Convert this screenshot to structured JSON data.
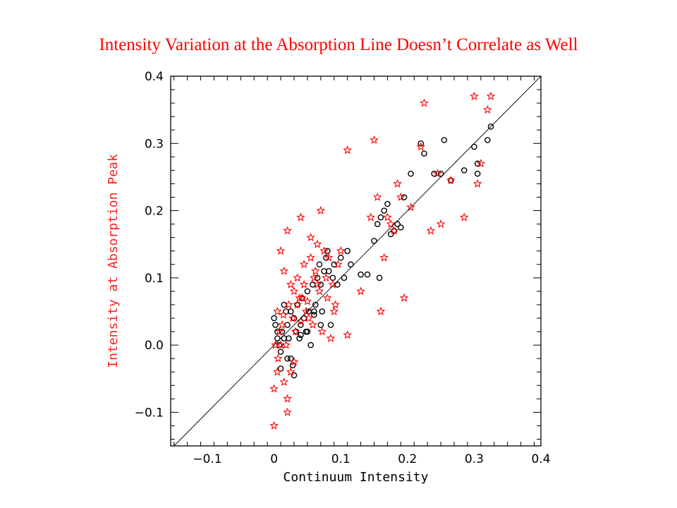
{
  "slide": {
    "title": "Intensity Variation at the Absorption Line Doesn’t Correlate as Well"
  },
  "chart_data": {
    "type": "scatter",
    "xlabel": "Continuum Intensity",
    "ylabel": "Intensity at Absorption Peak",
    "xlim": [
      -0.155,
      0.4
    ],
    "ylim": [
      -0.15,
      0.4
    ],
    "x_ticks": [
      -0.1,
      0.0,
      0.1,
      0.2,
      0.3,
      0.4
    ],
    "x_tick_labels": [
      "−0.1",
      "0",
      "0.1",
      "0.2",
      "0.3",
      "0.4"
    ],
    "y_ticks": [
      -0.1,
      0.0,
      0.1,
      0.2,
      0.3,
      0.4
    ],
    "y_tick_labels": [
      "−0.1",
      "0.0",
      "0.1",
      "0.2",
      "0.3",
      "0.4"
    ],
    "grid": false,
    "reference_line": "y = x",
    "series": [
      {
        "marker": "circle",
        "color": "#000000",
        "points": [
          [
            0.0,
            0.04
          ],
          [
            0.002,
            0.03
          ],
          [
            0.005,
            0.01
          ],
          [
            0.008,
            0.0
          ],
          [
            0.01,
            -0.01
          ],
          [
            0.012,
            0.02
          ],
          [
            0.015,
            0.06
          ],
          [
            0.018,
            0.05
          ],
          [
            0.02,
            0.03
          ],
          [
            0.022,
            0.01
          ],
          [
            0.025,
            -0.02
          ],
          [
            0.028,
            -0.03
          ],
          [
            0.03,
            0.04
          ],
          [
            0.033,
            0.02
          ],
          [
            0.035,
            0.06
          ],
          [
            0.038,
            0.01
          ],
          [
            0.04,
            0.03
          ],
          [
            0.042,
            0.07
          ],
          [
            0.045,
            0.04
          ],
          [
            0.048,
            0.02
          ],
          [
            0.05,
            0.08
          ],
          [
            0.052,
            0.05
          ],
          [
            0.055,
            0.0
          ],
          [
            0.058,
            0.09
          ],
          [
            0.06,
            0.05
          ],
          [
            0.062,
            0.06
          ],
          [
            0.065,
            0.1
          ],
          [
            0.068,
            0.12
          ],
          [
            0.07,
            0.09
          ],
          [
            0.072,
            0.05
          ],
          [
            0.075,
            0.11
          ],
          [
            0.078,
            0.13
          ],
          [
            0.08,
            0.14
          ],
          [
            0.082,
            0.11
          ],
          [
            0.085,
            0.03
          ],
          [
            0.088,
            0.1
          ],
          [
            0.09,
            0.12
          ],
          [
            0.095,
            0.09
          ],
          [
            0.1,
            0.13
          ],
          [
            0.105,
            0.1
          ],
          [
            0.11,
            0.14
          ],
          [
            0.115,
            0.12
          ],
          [
            0.13,
            0.105
          ],
          [
            0.14,
            0.105
          ],
          [
            0.15,
            0.155
          ],
          [
            0.155,
            0.18
          ],
          [
            0.158,
            0.1
          ],
          [
            0.16,
            0.19
          ],
          [
            0.165,
            0.2
          ],
          [
            0.17,
            0.21
          ],
          [
            0.175,
            0.165
          ],
          [
            0.18,
            0.17
          ],
          [
            0.185,
            0.18
          ],
          [
            0.19,
            0.175
          ],
          [
            0.195,
            0.22
          ],
          [
            0.205,
            0.255
          ],
          [
            0.22,
            0.3
          ],
          [
            0.225,
            0.285
          ],
          [
            0.24,
            0.255
          ],
          [
            0.255,
            0.305
          ],
          [
            0.25,
            0.255
          ],
          [
            0.265,
            0.245
          ],
          [
            0.285,
            0.26
          ],
          [
            0.3,
            0.295
          ],
          [
            0.305,
            0.255
          ],
          [
            0.305,
            0.27
          ],
          [
            0.32,
            0.305
          ],
          [
            0.325,
            0.325
          ],
          [
            0.01,
            -0.035
          ],
          [
            0.02,
            -0.02
          ],
          [
            0.03,
            -0.045
          ],
          [
            0.015,
            0.01
          ],
          [
            0.005,
            0.02
          ],
          [
            0.04,
            0.015
          ],
          [
            0.05,
            0.02
          ],
          [
            0.06,
            0.045
          ],
          [
            0.07,
            0.03
          ],
          [
            0.025,
            0.05
          ]
        ]
      },
      {
        "marker": "star",
        "color": "#ff0000",
        "points": [
          [
            0.0,
            -0.12
          ],
          [
            0.0,
            -0.065
          ],
          [
            0.005,
            -0.04
          ],
          [
            0.01,
            0.0
          ],
          [
            0.015,
            -0.055
          ],
          [
            0.02,
            -0.08
          ],
          [
            0.02,
            -0.1
          ],
          [
            0.025,
            -0.04
          ],
          [
            0.01,
            0.14
          ],
          [
            0.02,
            0.17
          ],
          [
            0.03,
            0.08
          ],
          [
            0.035,
            0.06
          ],
          [
            0.04,
            0.19
          ],
          [
            0.045,
            0.12
          ],
          [
            0.055,
            0.16
          ],
          [
            0.06,
            0.1
          ],
          [
            0.065,
            0.09
          ],
          [
            0.07,
            0.2
          ],
          [
            0.075,
            0.14
          ],
          [
            0.08,
            0.07
          ],
          [
            0.085,
            0.01
          ],
          [
            0.09,
            0.05
          ],
          [
            0.1,
            0.14
          ],
          [
            0.11,
            0.29
          ],
          [
            0.11,
            0.015
          ],
          [
            0.13,
            0.08
          ],
          [
            0.145,
            0.19
          ],
          [
            0.15,
            0.305
          ],
          [
            0.155,
            0.22
          ],
          [
            0.16,
            0.05
          ],
          [
            0.165,
            0.13
          ],
          [
            0.17,
            0.19
          ],
          [
            0.175,
            0.18
          ],
          [
            0.18,
            0.17
          ],
          [
            0.185,
            0.24
          ],
          [
            0.19,
            0.22
          ],
          [
            0.195,
            0.07
          ],
          [
            0.205,
            0.205
          ],
          [
            0.22,
            0.295
          ],
          [
            0.225,
            0.36
          ],
          [
            0.235,
            0.17
          ],
          [
            0.245,
            0.255
          ],
          [
            0.25,
            0.18
          ],
          [
            0.265,
            0.245
          ],
          [
            0.285,
            0.19
          ],
          [
            0.3,
            0.37
          ],
          [
            0.305,
            0.24
          ],
          [
            0.31,
            0.27
          ],
          [
            0.32,
            0.35
          ],
          [
            0.325,
            0.37
          ],
          [
            0.005,
            0.05
          ],
          [
            0.008,
            0.02
          ],
          [
            0.012,
            0.03
          ],
          [
            0.018,
            0.0
          ],
          [
            0.022,
            0.06
          ],
          [
            0.028,
            0.04
          ],
          [
            0.032,
            0.02
          ],
          [
            0.038,
            0.07
          ],
          [
            0.042,
            0.07
          ],
          [
            0.048,
            0.05
          ],
          [
            0.052,
            0.04
          ],
          [
            0.058,
            0.03
          ],
          [
            0.062,
            0.11
          ],
          [
            0.068,
            0.08
          ],
          [
            0.072,
            0.02
          ],
          [
            0.078,
            0.1
          ],
          [
            0.082,
            0.13
          ],
          [
            0.088,
            0.09
          ],
          [
            0.092,
            0.06
          ],
          [
            0.096,
            0.12
          ],
          [
            0.015,
            0.11
          ],
          [
            0.025,
            0.09
          ],
          [
            0.035,
            0.1
          ],
          [
            0.045,
            0.09
          ],
          [
            0.055,
            0.13
          ],
          [
            0.065,
            0.15
          ],
          [
            0.002,
            0.0
          ],
          [
            0.006,
            -0.02
          ],
          [
            0.014,
            0.045
          ],
          [
            0.03,
            -0.025
          ],
          [
            0.04,
            0.035
          ],
          [
            0.05,
            0.065
          ]
        ]
      }
    ]
  }
}
